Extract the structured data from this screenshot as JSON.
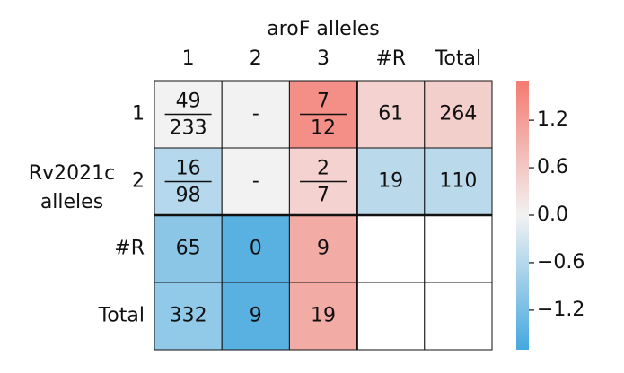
{
  "chart_data": {
    "type": "heatmap",
    "title": "aroF alleles",
    "ylabel": [
      "Rv2021c",
      "alleles"
    ],
    "columns": [
      "1",
      "2",
      "3",
      "#R",
      "Total"
    ],
    "rows": [
      "1",
      "2",
      "#R",
      "Total"
    ],
    "cells": [
      [
        [
          49,
          233
        ],
        "-",
        [
          7,
          12
        ],
        61,
        264
      ],
      [
        [
          16,
          98
        ],
        "-",
        [
          2,
          7
        ],
        19,
        110
      ],
      [
        65,
        0,
        9,
        null,
        null
      ],
      [
        332,
        9,
        19,
        null,
        null
      ]
    ],
    "values": [
      [
        0.0,
        null,
        1.4,
        0.45,
        0.5
      ],
      [
        -0.6,
        null,
        0.45,
        -0.55,
        -0.55
      ],
      [
        -1.0,
        -1.5,
        1.0,
        null,
        null
      ],
      [
        -0.95,
        -1.5,
        1.0,
        null,
        null
      ]
    ],
    "colormap": [
      "#45a8e0",
      "#f2f2f2",
      "#f47a70"
    ],
    "missing_color": "#f2f2f2",
    "clim": [
      -1.7,
      1.7
    ],
    "cticks": [
      {
        "value": -1.2,
        "label": "−1.2"
      },
      {
        "value": -0.6,
        "label": "−0.6"
      },
      {
        "value": 0,
        "label": "0.0"
      },
      0.6,
      1.2
    ]
  }
}
